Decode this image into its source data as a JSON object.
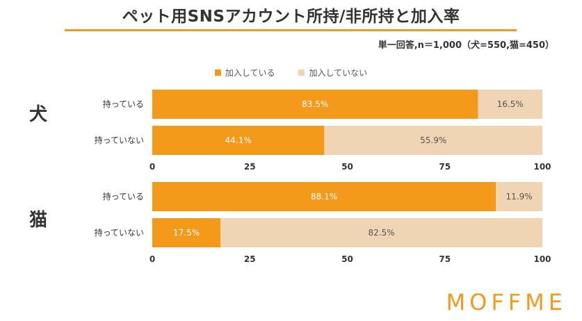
{
  "header": {
    "title": "ペット用SNSアカウント所持/非所持と加入率",
    "subtitle": "単一回答,n＝1,000（犬=550,猫=450）"
  },
  "logo": {
    "text": "MOFFME",
    "color": "#F39A1B"
  },
  "colors": {
    "accent": "#F39A1B",
    "secondary": "#EFD5B4",
    "underline": "#F39A1B"
  },
  "chart_data": {
    "type": "bar",
    "orientation": "horizontal",
    "stacked": true,
    "legend_position": "top-center",
    "grid": false,
    "series_names": [
      "加入している",
      "加入していない"
    ],
    "series_colors": [
      "#F39A1B",
      "#EFD5B4"
    ],
    "xlim": [
      0,
      100
    ],
    "xticks": [
      "0",
      "25",
      "50",
      "75",
      "100"
    ],
    "panels": [
      {
        "group": "犬",
        "categories": [
          "持っている",
          "持っていない"
        ],
        "series": [
          {
            "name": "加入している",
            "values": [
              83.5,
              44.1
            ],
            "labels": [
              "83.5%",
              "44.1%"
            ]
          },
          {
            "name": "加入していない",
            "values": [
              16.5,
              55.9
            ],
            "labels": [
              "16.5%",
              "55.9%"
            ]
          }
        ]
      },
      {
        "group": "猫",
        "categories": [
          "持っている",
          "持っていない"
        ],
        "series": [
          {
            "name": "加入している",
            "values": [
              88.1,
              17.5
            ],
            "labels": [
              "88.1%",
              "17.5%"
            ]
          },
          {
            "name": "加入していない",
            "values": [
              11.9,
              82.5
            ],
            "labels": [
              "11.9%",
              "82.5%"
            ]
          }
        ]
      }
    ]
  }
}
